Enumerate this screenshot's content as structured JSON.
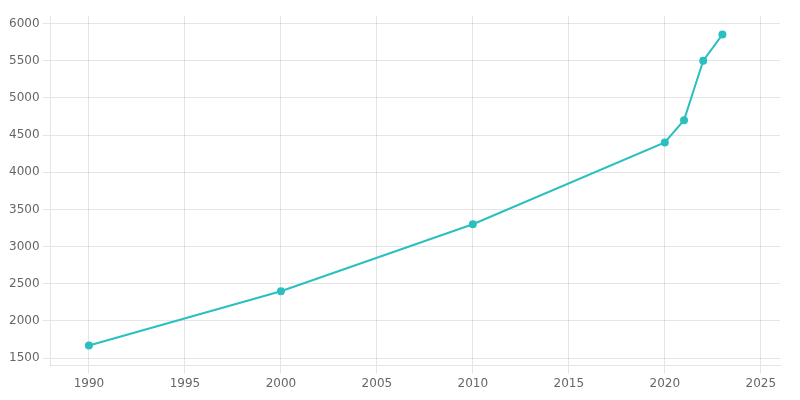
{
  "chart_data": {
    "type": "line",
    "x": [
      1990,
      2000,
      2010,
      2020,
      2021,
      2022,
      2023
    ],
    "values": [
      1670,
      2400,
      3300,
      4400,
      4700,
      5500,
      5850
    ],
    "color": "#2BBFBF",
    "marker": "circle",
    "xlim": [
      1988,
      2026
    ],
    "xticks": [
      1990,
      1995,
      2000,
      2005,
      2010,
      2015,
      2020,
      2025
    ],
    "ylim": [
      1400,
      6100
    ],
    "yticks": [
      1500,
      2000,
      2500,
      3000,
      3500,
      4000,
      4500,
      5000,
      5500,
      6000
    ],
    "grid": true
  }
}
